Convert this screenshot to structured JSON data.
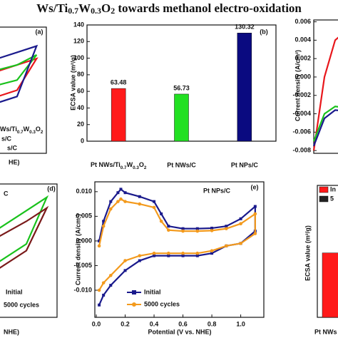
{
  "title": "Ws/Ti0.7W0.3O2 towards methanol electro-oxidation",
  "chart_data": [
    {
      "type": "line",
      "label": "(a)",
      "xlabel": "HE)",
      "x": [
        0.6,
        0.8,
        1.0,
        1.1,
        1.0,
        0.8,
        0.6
      ],
      "xlim": [
        0,
        1.15
      ],
      "ylim": [
        0,
        1
      ],
      "series": [
        {
          "name": "Ws/Ti0.7W0.3O2",
          "color": "#e8161b",
          "values": [
            0.55,
            0.6,
            0.7,
            0.75,
            0.5,
            0.4,
            0.38
          ]
        },
        {
          "name": "s/C",
          "color": "#19c21c",
          "values": [
            0.6,
            0.62,
            0.7,
            0.78,
            0.58,
            0.5,
            0.48
          ]
        },
        {
          "name": "s/C",
          "color": "#1a1a8c",
          "values": [
            0.65,
            0.7,
            0.8,
            0.85,
            0.45,
            0.35,
            0.3
          ]
        }
      ]
    },
    {
      "type": "bar",
      "label": "(b)",
      "ylabel": "ECSA value (m²/g)",
      "categories": [
        "Pt NWs/Ti0.7W0.3O2",
        "Pt NWs/C",
        "Pt NPs/C"
      ],
      "values": [
        63.48,
        56.73,
        130.32
      ],
      "colors": [
        "#ff1a1a",
        "#22e022",
        "#0a0a80"
      ],
      "ylim": [
        0,
        140
      ],
      "yticks": [
        0,
        20,
        40,
        60,
        80,
        100,
        120,
        140
      ]
    },
    {
      "type": "line",
      "ylabel": "Current density (A/cm²)",
      "x": [
        0,
        0.05,
        0.1,
        0.2,
        0.3
      ],
      "xlim": [
        0,
        1.2
      ],
      "ylim": [
        -0.0083,
        0.0062
      ],
      "yticks": [
        0.006,
        0.004,
        0.002,
        {
          "value": 0,
          "label": "0.000"
        },
        -0.002,
        -0.004,
        -0.006,
        -0.008
      ],
      "series": [
        {
          "color": "#e8161b",
          "values": [
            -0.008,
            0.0,
            0.004,
            0.006,
            0.0058
          ]
        },
        {
          "color": "#19c21c",
          "values": [
            -0.007,
            -0.004,
            -0.0032,
            -0.0035,
            -0.0036
          ]
        },
        {
          "color": "#1a1a8c",
          "values": [
            -0.0075,
            -0.0045,
            -0.0036,
            -0.0038,
            -0.004
          ]
        }
      ]
    },
    {
      "type": "line",
      "label": "(d)",
      "annotation": {
        "text": "C",
        "color": "#19c21c"
      },
      "xlabel": "NHE)",
      "x": [
        0.6,
        0.8,
        1.0,
        1.1,
        1.0,
        0.8,
        0.6
      ],
      "xlim": [
        0,
        1.15
      ],
      "ylim": [
        0,
        1
      ],
      "series": [
        {
          "name": "Initial",
          "color": "#19c21c",
          "values": [
            0.45,
            0.6,
            0.8,
            0.9,
            0.55,
            0.35,
            0.2
          ]
        },
        {
          "name": "5000 cycles",
          "color": "#7a1a1a",
          "values": [
            0.4,
            0.55,
            0.72,
            0.82,
            0.5,
            0.3,
            0.15
          ]
        }
      ]
    },
    {
      "type": "line",
      "label": "(e)",
      "annotation": {
        "text": "Pt NPs/C",
        "color": "#1a1a8c"
      },
      "xlabel": "Potential (V vs. NHE)",
      "ylabel": "Current density (A/cm²)",
      "x": [
        0.02,
        0.05,
        0.1,
        0.15,
        0.17,
        0.2,
        0.3,
        0.4,
        0.45,
        0.5,
        0.6,
        0.7,
        0.8,
        0.9,
        1.0,
        1.1,
        1.1,
        1.0,
        0.9,
        0.8,
        0.7,
        0.6,
        0.5,
        0.4,
        0.3,
        0.2,
        0.1,
        0.05,
        0.02
      ],
      "xlim": [
        -0.01,
        1.16
      ],
      "ylim": [
        -0.0155,
        0.012
      ],
      "xticks": [
        {
          "value": 0,
          "label": "0.0"
        },
        0.2,
        0.4,
        0.6,
        0.8,
        {
          "value": 1,
          "label": "1.0"
        }
      ],
      "yticks": [
        {
          "value": 0.01,
          "label": "0.010"
        },
        0.005,
        {
          "value": 0,
          "label": "0.000"
        },
        -0.005,
        {
          "value": -0.01,
          "label": "-0.010"
        }
      ],
      "series": [
        {
          "name": "Initial",
          "color": "#1a1a8c",
          "marker": "square",
          "values": [
            0.0,
            0.004,
            0.008,
            0.0098,
            0.0105,
            0.0098,
            0.009,
            0.008,
            0.0055,
            0.003,
            0.0025,
            0.0025,
            0.0026,
            0.003,
            0.0045,
            0.007,
            0.002,
            -0.0005,
            -0.001,
            -0.0025,
            -0.003,
            -0.003,
            -0.003,
            -0.003,
            -0.004,
            -0.006,
            -0.009,
            -0.011,
            -0.013
          ]
        },
        {
          "name": "5000 cycles",
          "color": "#f39a1d",
          "marker": "circle",
          "values": [
            -0.001,
            0.003,
            0.0065,
            0.008,
            0.0085,
            0.008,
            0.0075,
            0.0068,
            0.004,
            0.0022,
            0.002,
            0.002,
            0.0021,
            0.0025,
            0.0035,
            0.0055,
            0.0015,
            -0.0005,
            -0.001,
            -0.002,
            -0.0025,
            -0.0025,
            -0.0025,
            -0.0025,
            -0.003,
            -0.004,
            -0.007,
            -0.0085,
            -0.01
          ]
        }
      ]
    },
    {
      "type": "bar",
      "ylabel": "ECSA value (m²/g)",
      "categories": [
        "Pt NWs"
      ],
      "ylim": [
        0,
        130
      ],
      "series": [
        {
          "name": "In",
          "color": "#ff1a1a",
          "values": [
            63.48
          ]
        },
        {
          "name": "5",
          "color": "#222222",
          "values": [
            null
          ]
        }
      ]
    }
  ]
}
